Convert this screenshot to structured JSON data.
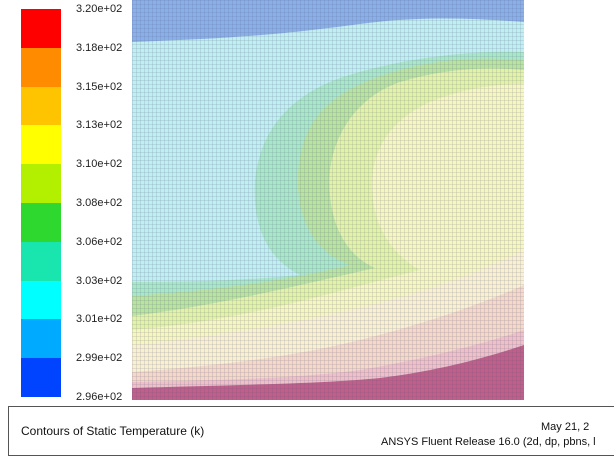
{
  "colormap": {
    "labels": [
      "3.20e+02",
      "3.18e+02",
      "3.15e+02",
      "3.13e+02",
      "3.10e+02",
      "3.08e+02",
      "3.06e+02",
      "3.03e+02",
      "3.01e+02",
      "2.99e+02",
      "2.96e+02"
    ],
    "colors": [
      "#ff0000",
      "#ff8c00",
      "#ffc400",
      "#ffff00",
      "#b3f000",
      "#2fd82f",
      "#19e6ae",
      "#00ffff",
      "#00aaff",
      "#0044ff"
    ]
  },
  "contour_colors": {
    "band_top": "#8ab0e8",
    "cyan": "#bfeff0",
    "teal": "#a8e8c8",
    "green": "#b8e4a0",
    "yellow_green": "#e2f3a8",
    "pale_yellow": "#f6f6c0",
    "cream": "#f8f0d0",
    "peach": "#f4d8c8",
    "pink": "#eec0c8",
    "magenta": "#c0608a",
    "grid_line": "#555580"
  },
  "caption": {
    "title": "Contours of Static Temperature (k)",
    "date": "May 21, 2",
    "release": "ANSYS Fluent Release 16.0 (2d, dp, pbns, l"
  }
}
